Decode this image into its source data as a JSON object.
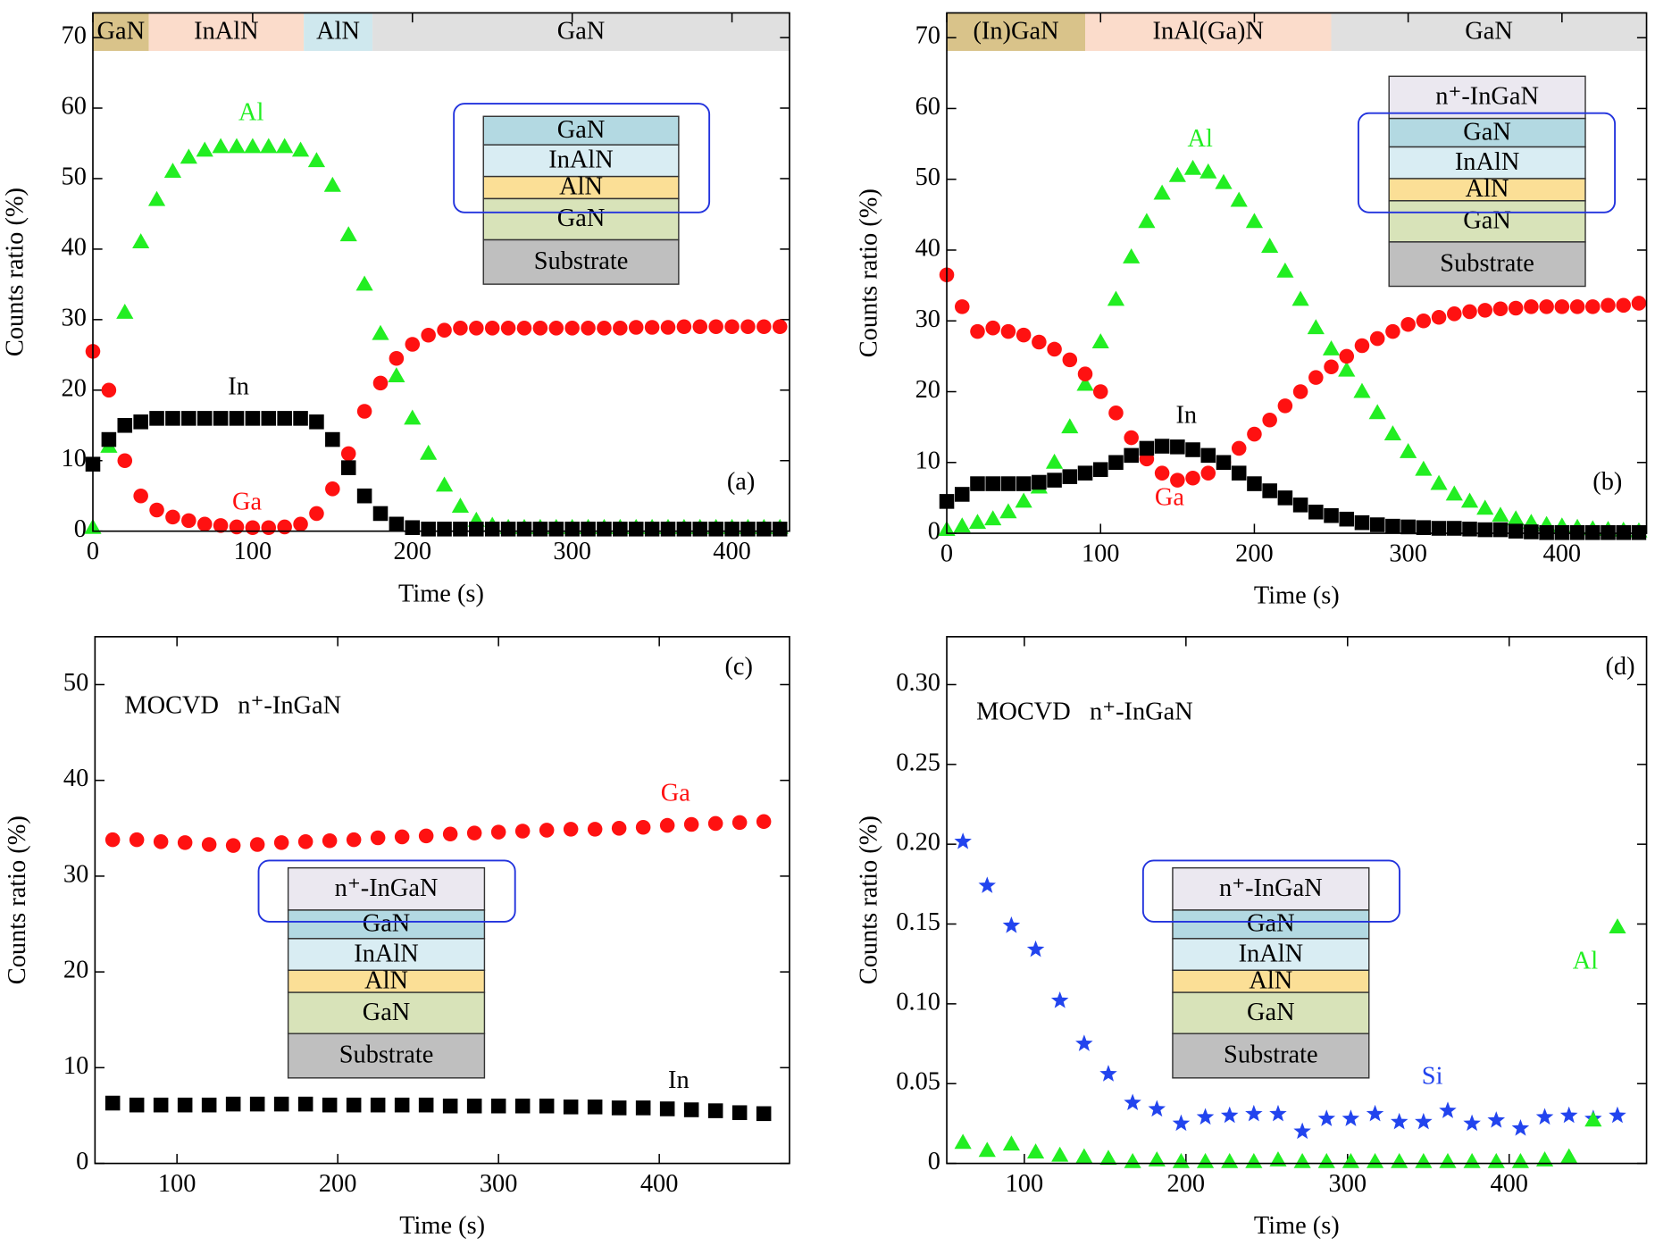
{
  "chart_data": [
    {
      "type": "scatter",
      "x_label": "Time (s)",
      "y_label": "Counts ratio (%)",
      "panel_label": "(a)",
      "xlim": [
        0,
        436
      ],
      "ylim": [
        0,
        73.5
      ],
      "xticks": [
        0,
        100,
        200,
        300,
        400
      ],
      "yticks": [
        0,
        10,
        20,
        30,
        40,
        50,
        60,
        70
      ],
      "x": [
        0,
        10,
        20,
        30,
        40,
        50,
        60,
        70,
        80,
        90,
        100,
        110,
        120,
        130,
        140,
        150,
        160,
        170,
        180,
        190,
        200,
        210,
        220,
        230,
        240,
        250,
        260,
        270,
        280,
        290,
        300,
        310,
        320,
        330,
        340,
        350,
        360,
        370,
        380,
        390,
        400,
        410,
        420,
        430
      ],
      "series": [
        {
          "name": "Al",
          "color": "#22ee22",
          "marker": "triangle",
          "values": [
            0.5,
            12,
            31,
            41,
            47,
            51,
            53,
            54,
            54.5,
            54.5,
            54.5,
            54.5,
            54.5,
            54,
            52.5,
            49,
            42,
            35,
            28,
            22,
            16,
            11,
            6.5,
            3.5,
            1.5,
            0.8,
            0.5,
            0.5,
            0.5,
            0.5,
            0.5,
            0.5,
            0.5,
            0.5,
            0.5,
            0.5,
            0.5,
            0.5,
            0.5,
            0.5,
            0.5,
            0.5,
            0.5,
            0.5
          ]
        },
        {
          "name": "Ga",
          "color": "#ff1111",
          "marker": "circle",
          "values": [
            25.5,
            20,
            10,
            5,
            3,
            2,
            1.5,
            1,
            0.8,
            0.6,
            0.5,
            0.5,
            0.6,
            1,
            2.5,
            6,
            11,
            17,
            21,
            24.5,
            26.5,
            27.8,
            28.5,
            28.8,
            28.8,
            28.8,
            28.8,
            28.8,
            28.8,
            28.8,
            28.8,
            28.8,
            28.8,
            28.8,
            28.9,
            28.9,
            28.9,
            29,
            29,
            29,
            29,
            29,
            29,
            29
          ]
        },
        {
          "name": "In",
          "color": "#000000",
          "marker": "square",
          "values": [
            9.5,
            13,
            15,
            15.5,
            16,
            16,
            16,
            16,
            16,
            16,
            16,
            16,
            16,
            16,
            15.5,
            13,
            9,
            5,
            2.5,
            1,
            0.5,
            0.3,
            0.3,
            0.3,
            0.3,
            0.3,
            0.3,
            0.3,
            0.3,
            0.3,
            0.3,
            0.3,
            0.3,
            0.3,
            0.3,
            0.3,
            0.3,
            0.3,
            0.3,
            0.3,
            0.3,
            0.3,
            0.3,
            0.3
          ]
        }
      ],
      "regions": [
        {
          "label": "GaN",
          "start": 0,
          "end": 35,
          "color": "#d9c38a"
        },
        {
          "label": "InAlN",
          "start": 35,
          "end": 132,
          "color": "#fbdccb"
        },
        {
          "label": "AlN",
          "start": 132,
          "end": 175,
          "color": "#cfe8ee"
        },
        {
          "label": "GaN",
          "start": 175,
          "end": 436,
          "color": "#e0e0e0"
        }
      ],
      "inset": {
        "layers": [
          {
            "label": "GaN",
            "color": "#b3d9e2"
          },
          {
            "label": "InAlN",
            "color": "#d9edf3"
          },
          {
            "label": "AlN",
            "color": "#fbdf96"
          },
          {
            "label": "GaN",
            "color": "#d8e3b9"
          },
          {
            "label": "Substrate",
            "color": "#bfbfbf"
          }
        ]
      }
    },
    {
      "type": "scatter",
      "x_label": "Time (s)",
      "y_label": "Counts ratio (%)",
      "panel_label": "(b)",
      "xlim": [
        0,
        455
      ],
      "ylim": [
        0,
        73.5
      ],
      "xticks": [
        0,
        100,
        200,
        300,
        400
      ],
      "yticks": [
        0,
        10,
        20,
        30,
        40,
        50,
        60,
        70
      ],
      "x": [
        0,
        10,
        20,
        30,
        40,
        50,
        60,
        70,
        80,
        90,
        100,
        110,
        120,
        130,
        140,
        150,
        160,
        170,
        180,
        190,
        200,
        210,
        220,
        230,
        240,
        250,
        260,
        270,
        280,
        290,
        300,
        310,
        320,
        330,
        340,
        350,
        360,
        370,
        380,
        390,
        400,
        410,
        420,
        430,
        440,
        450
      ],
      "series": [
        {
          "name": "Al",
          "color": "#22ee22",
          "marker": "triangle",
          "values": [
            0.5,
            1,
            1.5,
            2,
            3,
            4.5,
            6.5,
            10,
            15,
            21,
            27,
            33,
            39,
            44,
            48,
            50.5,
            51.5,
            51,
            49.5,
            47,
            44,
            40.5,
            37,
            33,
            29,
            26,
            23,
            20,
            17,
            14,
            11.5,
            9,
            7,
            5.5,
            4.5,
            3.5,
            2.5,
            2,
            1.5,
            1.2,
            1,
            0.8,
            0.6,
            0.5,
            0.4,
            0.3
          ]
        },
        {
          "name": "Ga",
          "color": "#ff1111",
          "marker": "circle",
          "values": [
            36.5,
            32,
            28.5,
            29,
            28.5,
            28,
            27,
            26,
            24.5,
            22.5,
            20,
            17,
            13.5,
            10.5,
            8.5,
            7.5,
            7.8,
            8.5,
            10,
            12,
            14,
            16,
            18,
            20,
            22,
            23.5,
            25,
            26.5,
            27.5,
            28.5,
            29.5,
            30,
            30.5,
            31,
            31.3,
            31.5,
            31.7,
            31.8,
            32,
            32,
            32,
            32,
            32,
            32.2,
            32.2,
            32.5
          ]
        },
        {
          "name": "In",
          "color": "#000000",
          "marker": "square",
          "values": [
            4.5,
            5.5,
            7,
            7,
            7,
            7,
            7.2,
            7.5,
            8,
            8.5,
            9,
            10,
            11,
            12,
            12.3,
            12.2,
            11.8,
            11,
            10,
            8.5,
            7,
            6,
            5,
            4,
            3,
            2.5,
            2,
            1.5,
            1.2,
            1,
            0.9,
            0.8,
            0.7,
            0.7,
            0.6,
            0.5,
            0.5,
            0.3,
            0.2,
            0.1,
            0.1,
            0.1,
            0.1,
            0.1,
            0.1,
            0.1
          ]
        }
      ],
      "regions": [
        {
          "label": "(In)GaN",
          "start": 0,
          "end": 90,
          "color": "#d9c38a"
        },
        {
          "label": "InAl(Ga)N",
          "start": 90,
          "end": 250,
          "color": "#fbdccb"
        },
        {
          "label": "GaN",
          "start": 250,
          "end": 455,
          "color": "#e0e0e0"
        }
      ],
      "inset": {
        "layers": [
          {
            "label": "n⁺-InGaN",
            "color": "#ebe8f0"
          },
          {
            "label": "GaN",
            "color": "#b3d9e2"
          },
          {
            "label": "InAlN",
            "color": "#d9edf3"
          },
          {
            "label": "AlN",
            "color": "#fbdf96"
          },
          {
            "label": "GaN",
            "color": "#d8e3b9"
          },
          {
            "label": "Substrate",
            "color": "#bfbfbf"
          }
        ]
      }
    },
    {
      "type": "scatter",
      "x_label": "Time (s)",
      "y_label": "Counts ratio (%)",
      "panel_label": "(c)",
      "annotation": "MOCVD   n⁺-InGaN",
      "xlim": [
        49,
        481
      ],
      "ylim": [
        0,
        55
      ],
      "xticks": [
        100,
        200,
        300,
        400
      ],
      "yticks": [
        0,
        10,
        20,
        30,
        40,
        50
      ],
      "x": [
        60,
        75,
        90,
        105,
        120,
        135,
        150,
        165,
        180,
        195,
        210,
        225,
        240,
        255,
        270,
        285,
        300,
        315,
        330,
        345,
        360,
        375,
        390,
        405,
        420,
        435,
        450,
        465
      ],
      "series": [
        {
          "name": "Ga",
          "color": "#ff1111",
          "marker": "circle",
          "values": [
            33.8,
            33.8,
            33.6,
            33.5,
            33.3,
            33.2,
            33.3,
            33.5,
            33.6,
            33.7,
            33.8,
            34,
            34.1,
            34.2,
            34.4,
            34.5,
            34.6,
            34.7,
            34.8,
            34.9,
            34.9,
            35,
            35.1,
            35.3,
            35.4,
            35.5,
            35.6,
            35.7
          ]
        },
        {
          "name": "In",
          "color": "#000000",
          "marker": "square",
          "values": [
            6.3,
            6.1,
            6.1,
            6.1,
            6.1,
            6.2,
            6.2,
            6.2,
            6.2,
            6.1,
            6.1,
            6.1,
            6.1,
            6.1,
            6,
            6,
            6,
            6,
            6,
            5.9,
            5.9,
            5.8,
            5.8,
            5.7,
            5.6,
            5.5,
            5.3,
            5.2
          ]
        }
      ],
      "inset": {
        "layers": [
          {
            "label": "n⁺-InGaN",
            "color": "#ebe8f0"
          },
          {
            "label": "GaN",
            "color": "#b3d9e2"
          },
          {
            "label": "InAlN",
            "color": "#d9edf3"
          },
          {
            "label": "AlN",
            "color": "#fbdf96"
          },
          {
            "label": "GaN",
            "color": "#d8e3b9"
          },
          {
            "label": "Substrate",
            "color": "#bfbfbf"
          }
        ]
      }
    },
    {
      "type": "scatter",
      "x_label": "Time (s)",
      "y_label": "Counts ratio (%)",
      "panel_label": "(d)",
      "annotation": "MOCVD   n⁺-InGaN",
      "xlim": [
        52,
        485
      ],
      "ylim": [
        0,
        0.33
      ],
      "xticks": [
        100,
        200,
        300,
        400
      ],
      "yticks": [
        0,
        0.05,
        {
          "value": 0.1,
          "label": "0.10"
        },
        0.15,
        {
          "value": 0.2,
          "label": "0.20"
        },
        0.25,
        {
          "value": 0.3,
          "label": "0.30"
        }
      ],
      "x": [
        62,
        77,
        92,
        107,
        122,
        137,
        152,
        167,
        182,
        197,
        212,
        227,
        242,
        257,
        272,
        287,
        302,
        317,
        332,
        347,
        362,
        377,
        392,
        407,
        422,
        437,
        452,
        467
      ],
      "series": [
        {
          "name": "Si",
          "color": "#2244ee",
          "marker": "star",
          "values": [
            0.2016,
            0.174,
            0.149,
            0.134,
            0.102,
            0.075,
            0.056,
            0.038,
            0.034,
            0.025,
            0.029,
            0.03,
            0.031,
            0.031,
            0.02,
            0.028,
            0.028,
            0.031,
            0.026,
            0.026,
            0.033,
            0.025,
            0.027,
            0.022,
            0.029,
            0.03,
            0.028,
            0.03
          ]
        },
        {
          "name": "Al",
          "color": "#22ee22",
          "marker": "triangle",
          "values": [
            0.013,
            0.008,
            0.012,
            0.007,
            0.005,
            0.004,
            0.003,
            0.001,
            0.002,
            0.001,
            0.001,
            0.001,
            0.001,
            0.002,
            0.001,
            0.001,
            0.001,
            0.001,
            0.001,
            0.001,
            0.001,
            0.001,
            0.001,
            0.001,
            0.002,
            0.004,
            0.027,
            0.148
          ]
        }
      ],
      "inset": {
        "layers": [
          {
            "label": "n⁺-InGaN",
            "color": "#ebe8f0"
          },
          {
            "label": "GaN",
            "color": "#b3d9e2"
          },
          {
            "label": "InAlN",
            "color": "#d9edf3"
          },
          {
            "label": "AlN",
            "color": "#fbdf96"
          },
          {
            "label": "GaN",
            "color": "#d8e3b9"
          },
          {
            "label": "Substrate",
            "color": "#bfbfbf"
          }
        ]
      }
    }
  ]
}
